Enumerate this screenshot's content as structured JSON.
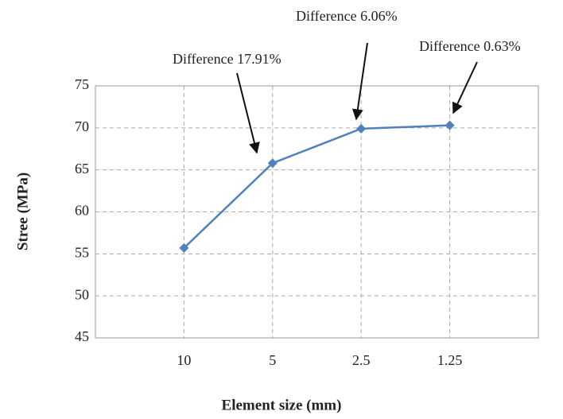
{
  "chart_data": {
    "type": "line",
    "x_label": "Element size (mm)",
    "y_label": "Stree (MPa)",
    "categories": [
      "10",
      "5",
      "2.5",
      "1.25"
    ],
    "series": [
      {
        "color": "#4f81bd",
        "values": [
          55.7,
          65.8,
          69.9,
          70.3
        ]
      }
    ],
    "ylim": [
      45,
      75
    ],
    "yticks": [
      45,
      50,
      55,
      60,
      65,
      70,
      75
    ],
    "grid": true,
    "annotations": [
      "Difference 17.91%",
      "Difference 6.06%",
      "Difference 0.63%"
    ]
  }
}
